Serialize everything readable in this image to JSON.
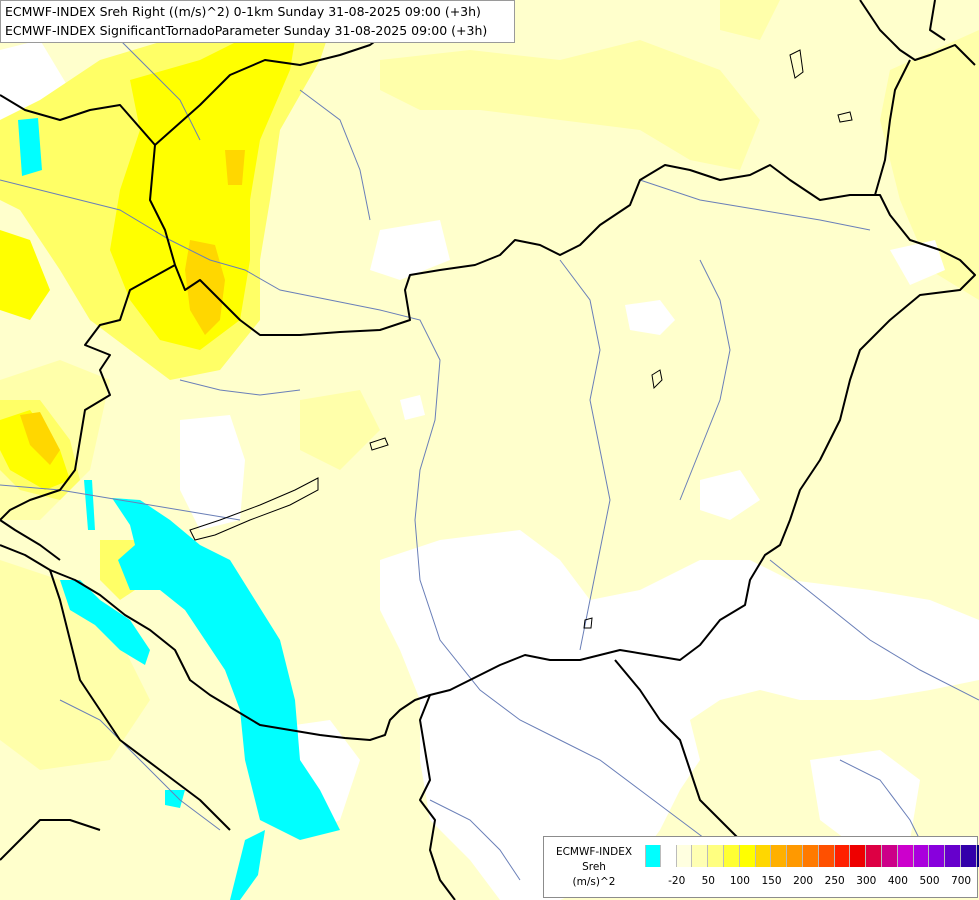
{
  "title": {
    "line1": "ECMWF-INDEX Sreh Right ((m/s)^2) 0-1km Sunday 31-08-2025 09:00 (+3h)",
    "line2": "ECMWF-INDEX SignificantTornadoParameter Sunday 31-08-2025 09:00 (+3h)"
  },
  "legend": {
    "line1": "ECMWF-INDEX",
    "line2": "Sreh",
    "line3": "(m/s)^2",
    "colors": [
      "#00ffff",
      "#ffffff",
      "#ffffe0",
      "#ffffb3",
      "#ffff80",
      "#ffff33",
      "#ffff00",
      "#ffd700",
      "#ffb000",
      "#ff9900",
      "#ff7a00",
      "#ff5000",
      "#ff2000",
      "#ee0000",
      "#dd0044",
      "#cc0088",
      "#cc00cc",
      "#aa00dd",
      "#8800dd",
      "#6600cc",
      "#3300aa",
      "#000080"
    ],
    "ticks": [
      {
        "label": "-20",
        "index": 1
      },
      {
        "label": "50",
        "index": 3
      },
      {
        "label": "100",
        "index": 5
      },
      {
        "label": "150",
        "index": 7
      },
      {
        "label": "200",
        "index": 9
      },
      {
        "label": "250",
        "index": 11
      },
      {
        "label": "300",
        "index": 13
      },
      {
        "label": "400",
        "index": 15
      },
      {
        "label": "500",
        "index": 17
      },
      {
        "label": "700",
        "index": 19
      }
    ]
  },
  "colors": {
    "background": "#ffffcc",
    "cyan": "#00ffff",
    "yellow_strong": "#ffff00",
    "orange": "#ffd700",
    "border": "#000000",
    "river": "#6a7fb8"
  }
}
